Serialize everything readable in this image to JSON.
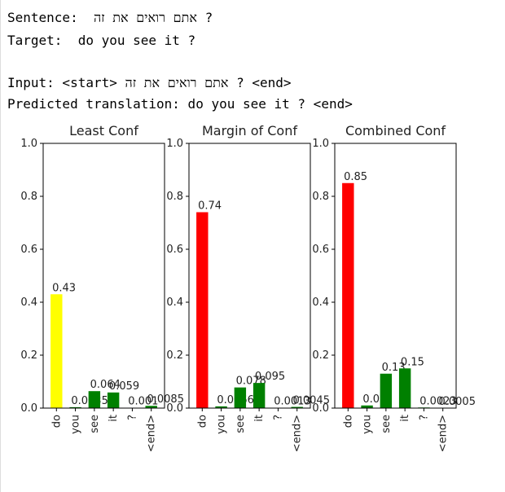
{
  "output_lines": [
    "Sentence:  אתם רואים את זה ?",
    "Target:  do you see it ?",
    "Input: <start> אתם רואים את זה ? <end>",
    "Predicted translation: do you see it ? <end>"
  ],
  "chart_data": [
    {
      "type": "bar",
      "title": "Least Conf",
      "categories": [
        "do",
        "you",
        "see",
        "it",
        "?",
        "<end>"
      ],
      "values": [
        0.43,
        0.0035,
        0.064,
        0.059,
        0.001,
        0.0085
      ],
      "colors": [
        "yellow",
        "green",
        "green",
        "green",
        "green",
        "green"
      ],
      "ylim": [
        0,
        1
      ],
      "yticks": [
        {
          "value": 0,
          "label": "0.0"
        },
        0.2,
        0.4,
        0.6,
        0.8,
        {
          "value": 1,
          "label": "1.0"
        }
      ]
    },
    {
      "type": "bar",
      "title": "Margin of Conf",
      "categories": [
        "do",
        "you",
        "see",
        "it",
        "?",
        "<end>"
      ],
      "values": [
        0.74,
        0.0066,
        0.078,
        0.095,
        0.0013,
        0.0045
      ],
      "colors": [
        "red",
        "green",
        "green",
        "green",
        "green",
        "green"
      ],
      "ylim": [
        0,
        1
      ],
      "yticks": [
        {
          "value": 0,
          "label": "0.0"
        },
        0.2,
        0.4,
        0.6,
        0.8,
        {
          "value": 1,
          "label": "1.0"
        }
      ]
    },
    {
      "type": "bar",
      "title": "Combined Conf",
      "categories": [
        "do",
        "you",
        "see",
        "it",
        "?",
        "<end>"
      ],
      "values": [
        0.85,
        0.01,
        0.13,
        0.15,
        0.0023,
        0.0005
      ],
      "colors": [
        "red",
        "green",
        "green",
        "green",
        "green",
        "green"
      ],
      "ylim": [
        0,
        1
      ],
      "yticks": [
        {
          "value": 0,
          "label": "0.0"
        },
        0.2,
        0.4,
        0.6,
        0.8,
        {
          "value": 1,
          "label": "1.0"
        }
      ]
    }
  ]
}
